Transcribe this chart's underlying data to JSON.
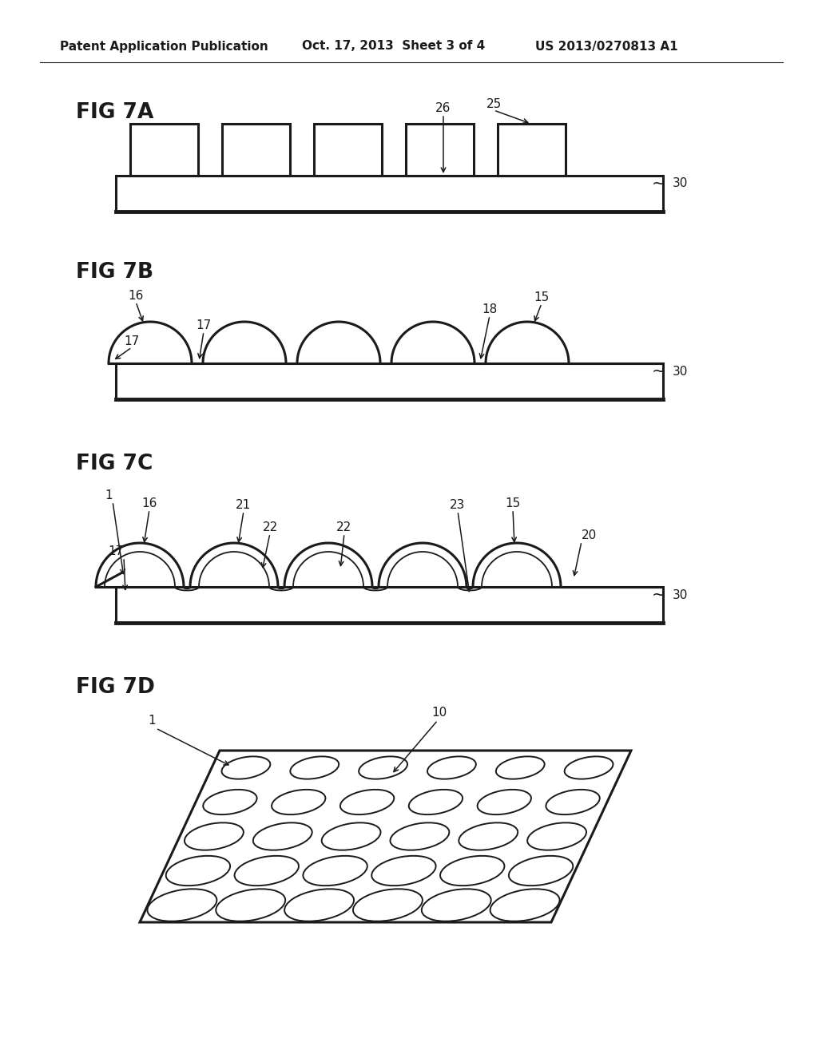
{
  "bg_color": "#ffffff",
  "line_color": "#1a1a1a",
  "header_left": "Patent Application Publication",
  "header_mid": "Oct. 17, 2013  Sheet 3 of 4",
  "header_right": "US 2013/0270813 A1",
  "fig7a_label": "FIG 7A",
  "fig7b_label": "FIG 7B",
  "fig7c_label": "FIG 7C",
  "fig7d_label": "FIG 7D",
  "lw_main": 2.2,
  "lw_thin": 1.3,
  "lw_sub": 3.5,
  "fontsize_fig": 19,
  "fontsize_label": 11,
  "fontsize_header": 11
}
